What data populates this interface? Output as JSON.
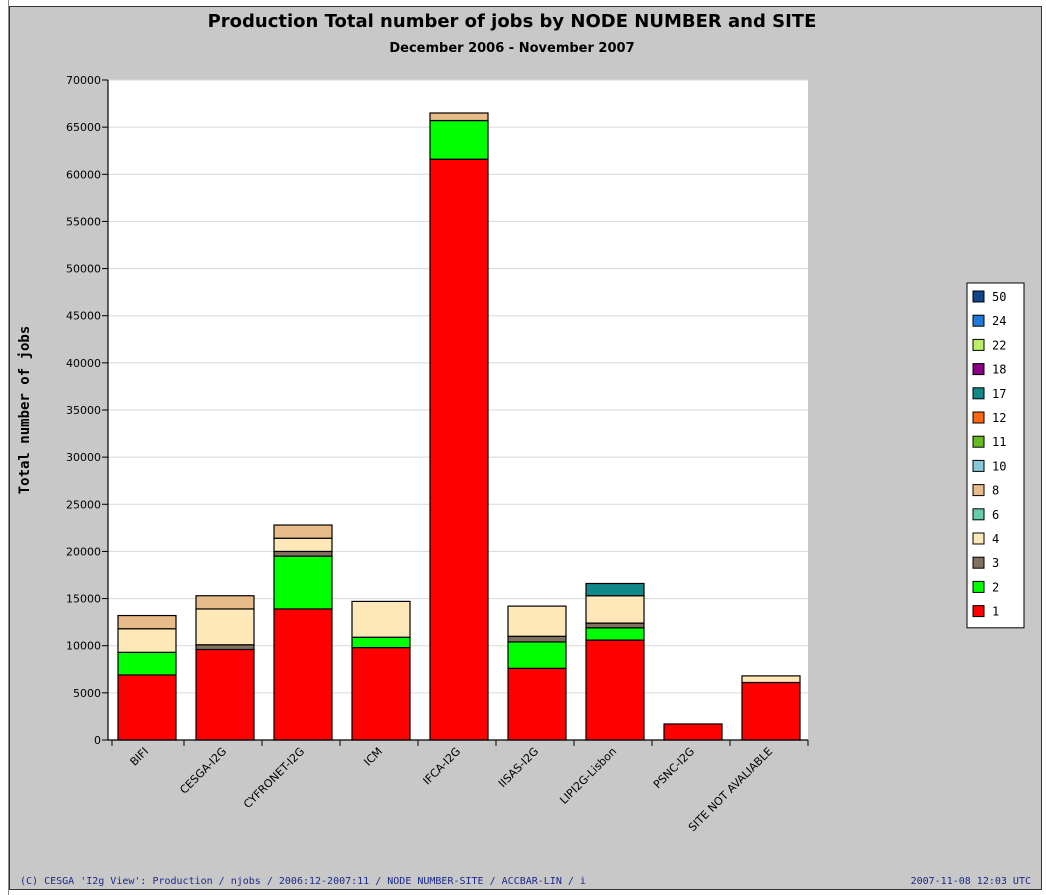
{
  "chart_data": {
    "type": "bar",
    "stacked": true,
    "title": "Production Total number of jobs by NODE NUMBER and SITE",
    "subtitle": "December 2006 - November 2007",
    "ylabel": "Total number of jobs",
    "xlabel": "",
    "ylim": [
      0,
      70000
    ],
    "ytick_step": 5000,
    "grid": true,
    "legend_position": "right",
    "categories": [
      "BIFI",
      "CESGA-I2G",
      "CYFRONET-I2G",
      "ICM",
      "IFCA-I2G",
      "IISAS-I2G",
      "LIPI2G-Lisbon",
      "PSNC-I2G",
      "SITE NOT AVALIABLE"
    ],
    "series": [
      {
        "name": "1",
        "color": "#ff0000",
        "values": [
          6900,
          9600,
          13900,
          9800,
          61600,
          7600,
          10600,
          1700,
          6100
        ]
      },
      {
        "name": "2",
        "color": "#00ff00",
        "values": [
          2400,
          0,
          5600,
          1100,
          4100,
          2800,
          1300,
          0,
          0
        ]
      },
      {
        "name": "3",
        "color": "#807060",
        "values": [
          0,
          500,
          500,
          0,
          0,
          600,
          500,
          0,
          0
        ]
      },
      {
        "name": "4",
        "color": "#ffe8b8",
        "values": [
          2500,
          3800,
          1400,
          3800,
          0,
          3200,
          2900,
          0,
          700
        ]
      },
      {
        "name": "6",
        "color": "#66ccaa",
        "values": [
          0,
          0,
          0,
          0,
          0,
          0,
          0,
          0,
          0
        ]
      },
      {
        "name": "8",
        "color": "#e8bb8a",
        "values": [
          1400,
          1400,
          1400,
          0,
          800,
          0,
          0,
          0,
          0
        ]
      },
      {
        "name": "10",
        "color": "#88c8d8",
        "values": [
          0,
          0,
          0,
          0,
          0,
          0,
          0,
          0,
          0
        ]
      },
      {
        "name": "11",
        "color": "#66bb22",
        "values": [
          0,
          0,
          0,
          0,
          0,
          0,
          0,
          0,
          0
        ]
      },
      {
        "name": "12",
        "color": "#ff6611",
        "values": [
          0,
          0,
          0,
          0,
          0,
          0,
          0,
          0,
          0
        ]
      },
      {
        "name": "17",
        "color": "#118888",
        "values": [
          0,
          0,
          0,
          0,
          0,
          0,
          1300,
          0,
          0
        ]
      },
      {
        "name": "18",
        "color": "#880088",
        "values": [
          0,
          0,
          0,
          0,
          0,
          0,
          0,
          0,
          0
        ]
      },
      {
        "name": "22",
        "color": "#bbee66",
        "values": [
          0,
          0,
          0,
          0,
          0,
          0,
          0,
          0,
          0
        ]
      },
      {
        "name": "24",
        "color": "#2277dd",
        "values": [
          0,
          0,
          0,
          0,
          0,
          0,
          0,
          0,
          0
        ]
      },
      {
        "name": "50",
        "color": "#114488",
        "values": [
          0,
          0,
          0,
          0,
          0,
          0,
          0,
          0,
          0
        ]
      }
    ],
    "legend_order": [
      "50",
      "24",
      "22",
      "18",
      "17",
      "12",
      "11",
      "10",
      "8",
      "6",
      "4",
      "3",
      "2",
      "1"
    ]
  },
  "footer": {
    "credit": "(C) CESGA 'I2g View': Production / njobs / 2006:12-2007:11 / NODE NUMBER-SITE / ACCBAR-LIN / i",
    "timestamp": "2007-11-08 12:03 UTC"
  },
  "colors": {
    "panel_bg": "#c8c8c8",
    "plot_bg": "#ffffff",
    "grid": "#d8d8d8"
  }
}
